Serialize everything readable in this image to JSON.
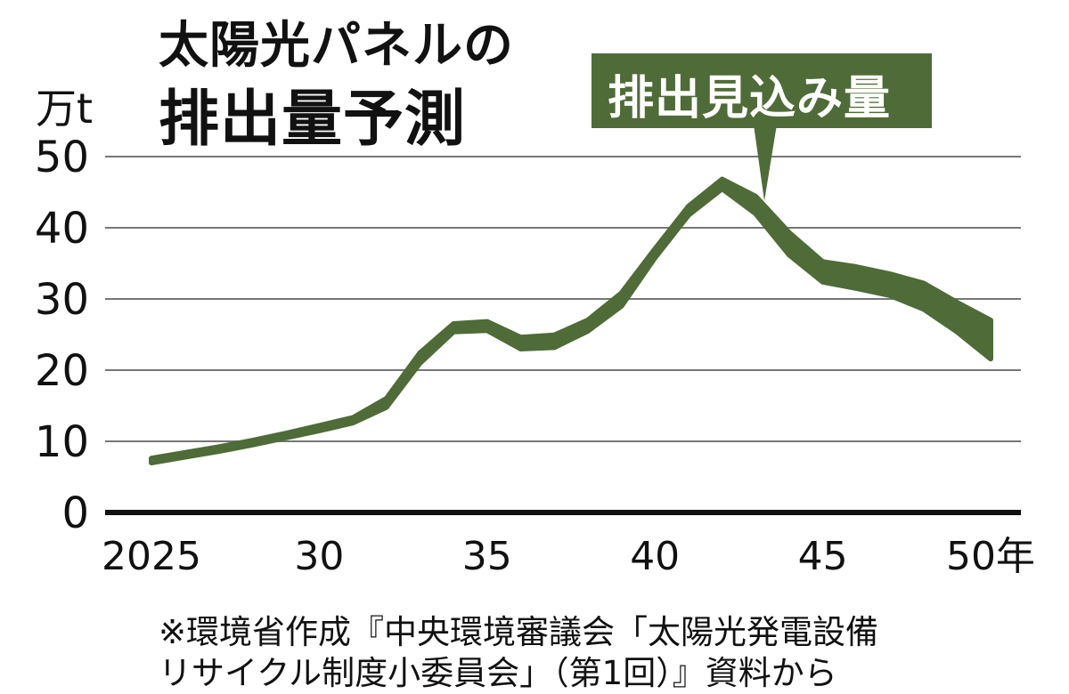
{
  "chart_data": {
    "type": "area",
    "title_line1": "太陽光パネルの",
    "title_line2": "排出量予測",
    "y_unit": "万t",
    "annotation": "排出見込み量",
    "source_line1": "※環境省作成『中央環境審議会「太陽光発電設備",
    "source_line2": "リサイクル制度小委員会」（第1回）』資料から",
    "ylim": [
      0,
      50
    ],
    "xlim": [
      2025,
      2050
    ],
    "y_ticks": [
      {
        "value": 0,
        "label": "0"
      },
      {
        "value": 10,
        "label": "10"
      },
      {
        "value": 20,
        "label": "20"
      },
      {
        "value": 30,
        "label": "30"
      },
      {
        "value": 40,
        "label": "40"
      },
      {
        "value": 50,
        "label": "50"
      }
    ],
    "x_ticks": [
      {
        "value": 2025,
        "label": "2025"
      },
      {
        "value": 2030,
        "label": "30"
      },
      {
        "value": 2035,
        "label": "35"
      },
      {
        "value": 2040,
        "label": "40"
      },
      {
        "value": 2045,
        "label": "45"
      },
      {
        "value": 2050,
        "label": "50年"
      }
    ],
    "grid": true,
    "color": "#4f6b38",
    "series": [
      {
        "x": [
          2025,
          2026,
          2027,
          2028,
          2029,
          2030,
          2031,
          2032,
          2033,
          2034,
          2035,
          2036,
          2037,
          2038,
          2039,
          2040,
          2041,
          2042,
          2043,
          2044,
          2045,
          2046,
          2047,
          2048,
          2049,
          2050
        ],
        "low": [
          7.0,
          7.8,
          8.6,
          9.5,
          10.5,
          11.5,
          12.6,
          14.8,
          21.0,
          25.4,
          25.6,
          23.0,
          23.2,
          25.5,
          29.0,
          35.8,
          41.8,
          45.5,
          42.0,
          36.2,
          32.4,
          31.5,
          30.5,
          28.6,
          25.4,
          21.6
        ],
        "high": [
          7.6,
          8.4,
          9.2,
          10.1,
          11.1,
          12.2,
          13.3,
          16.0,
          22.4,
          26.5,
          26.8,
          24.6,
          24.9,
          27.0,
          30.8,
          37.0,
          43.0,
          46.8,
          44.4,
          39.3,
          35.2,
          34.5,
          33.5,
          32.2,
          29.5,
          27.0
        ]
      }
    ]
  }
}
